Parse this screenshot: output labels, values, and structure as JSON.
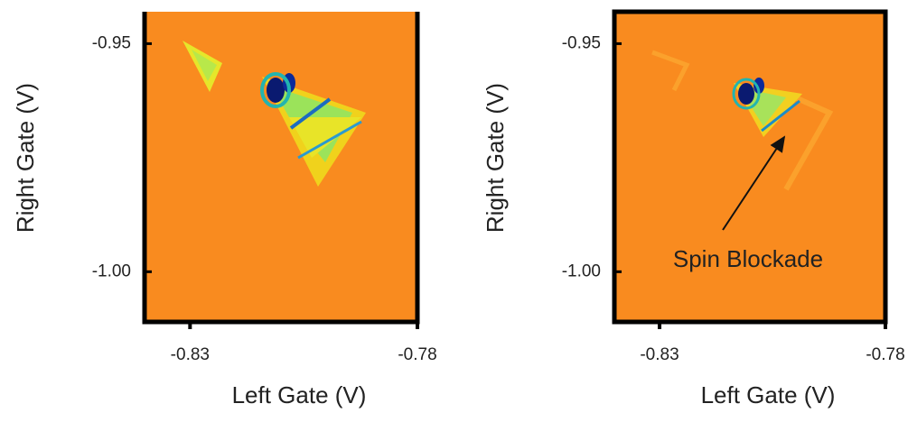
{
  "chart_data": [
    {
      "type": "heatmap",
      "xlabel": "Left Gate (V)",
      "ylabel": "Right Gate (V)",
      "xlim": [
        -0.84,
        -0.78
      ],
      "xticks": [
        -0.83,
        -0.78
      ],
      "ylim": [
        -1.011,
        -0.943
      ],
      "yticks": [
        -0.95,
        {
          "value": -1,
          "label": "-1.00"
        }
      ]
    },
    {
      "type": "heatmap",
      "xlabel": "Left Gate (V)",
      "ylabel": "Right Gate (V)",
      "xlim": [
        -0.84,
        -0.78
      ],
      "xticks": [
        -0.83,
        -0.78
      ],
      "ylim": [
        -1.011,
        -0.943
      ],
      "yticks": [
        -0.95,
        {
          "value": -1,
          "label": "-1.00"
        }
      ],
      "annotation": "Spin Blockade"
    }
  ]
}
